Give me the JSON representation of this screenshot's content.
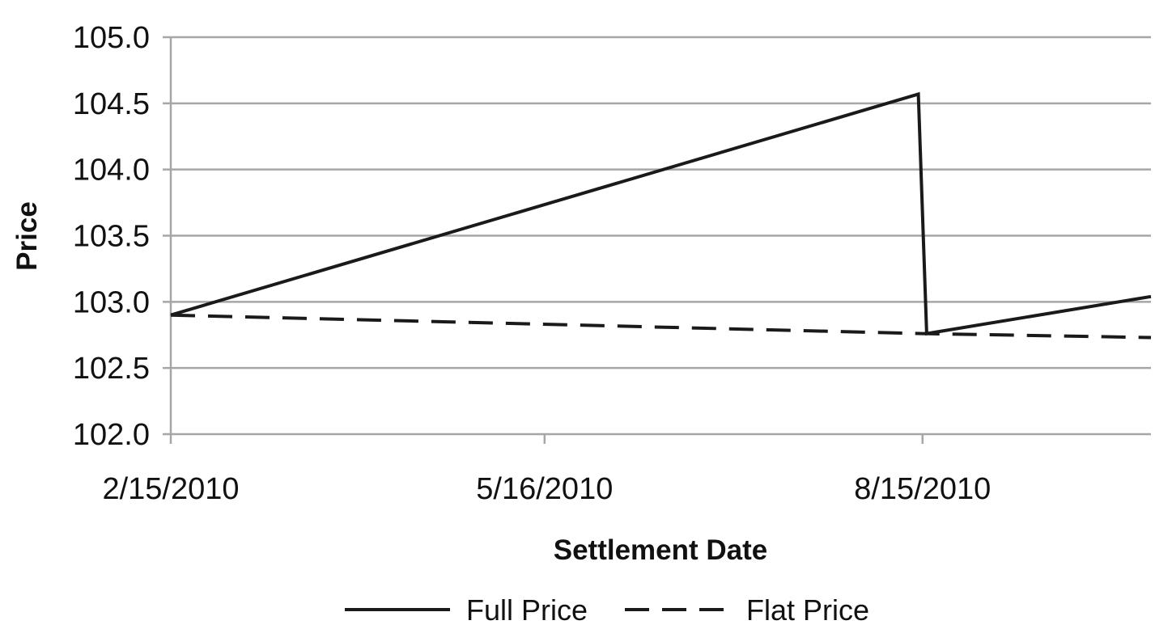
{
  "chart_data": {
    "type": "line",
    "title": "",
    "xlabel": "Settlement Date",
    "ylabel": "Price",
    "xlim": [
      "2010-02-15",
      "2010-10-09"
    ],
    "ylim": [
      102.0,
      105.0
    ],
    "x_ticks": [
      {
        "date": "2010-02-15",
        "label": "2/15/2010"
      },
      {
        "date": "2010-05-16",
        "label": "5/16/2010"
      },
      {
        "date": "2010-08-15",
        "label": "8/15/2010"
      }
    ],
    "y_ticks": [
      "102.0",
      "102.5",
      "103.0",
      "103.5",
      "104.0",
      "104.5",
      "105.0"
    ],
    "y_tick_values": [
      102.0,
      102.5,
      103.0,
      103.5,
      104.0,
      104.5,
      105.0
    ],
    "grid": "horizontal",
    "legend_position": "bottom",
    "series": [
      {
        "name": "Full Price",
        "style": "solid",
        "color": "#1a1a1a",
        "points": [
          {
            "x": "2010-02-15",
            "y": 102.9
          },
          {
            "x": "2010-08-14",
            "y": 104.57
          },
          {
            "x": "2010-08-16",
            "y": 102.76
          },
          {
            "x": "2010-10-09",
            "y": 103.04
          }
        ]
      },
      {
        "name": "Flat Price",
        "style": "dashed",
        "color": "#1a1a1a",
        "points": [
          {
            "x": "2010-02-15",
            "y": 102.9
          },
          {
            "x": "2010-08-15",
            "y": 102.76
          },
          {
            "x": "2010-10-09",
            "y": 102.73
          }
        ]
      }
    ]
  }
}
